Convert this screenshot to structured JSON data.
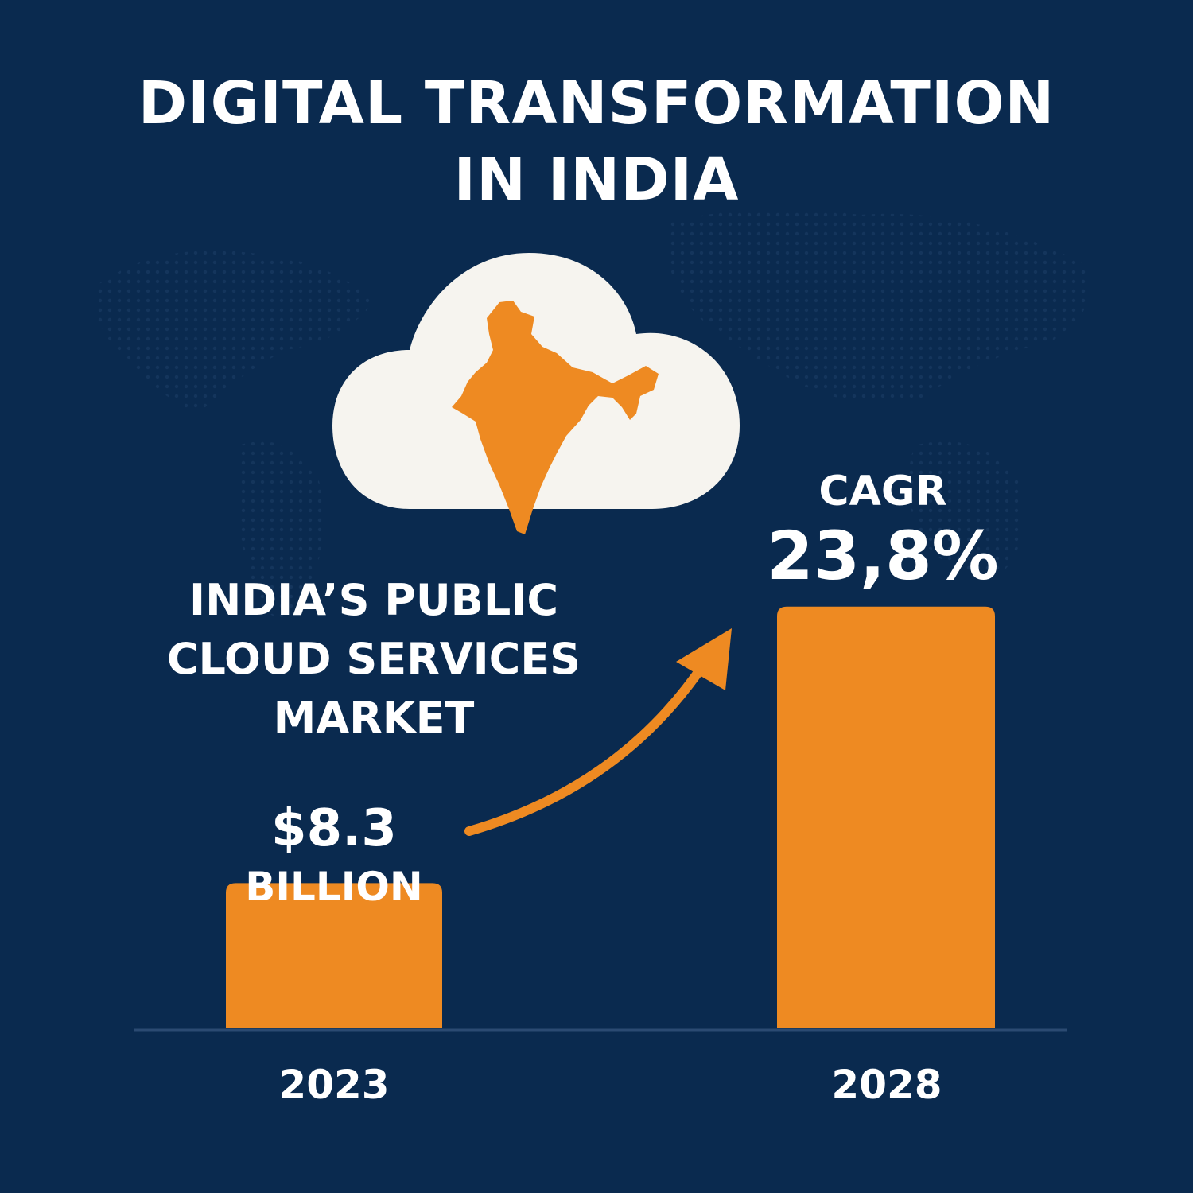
{
  "title_lines": [
    "DIGITAL TRANSFORMATION",
    "IN INDIA"
  ],
  "subtitle_lines": [
    "INDIA’S PUBLIC",
    "CLOUD SERVICES",
    "MARKET"
  ],
  "value_label": {
    "number": "$8.3",
    "unit": "BILLION"
  },
  "cagr": {
    "label": "CAGR",
    "value": "23,8%"
  },
  "colors": {
    "background": "#0a2a4f",
    "bar": "#ee8a22",
    "cloud": "#f6f4ef",
    "map": "#ee8a22",
    "text": "#ffffff",
    "baseline": "#2b4a72"
  },
  "icons": [
    "cloud-icon",
    "india-map-icon",
    "growth-arrow-icon"
  ],
  "chart_data": {
    "type": "bar",
    "categories": [
      "2023",
      "2028"
    ],
    "values": [
      8.3,
      24.1
    ],
    "value_unit": "billion USD",
    "data_labels": [
      "$8.3 BILLION",
      ""
    ],
    "annotation": "CAGR 23,8%",
    "title": "DIGITAL TRANSFORMATION IN INDIA",
    "subtitle": "INDIA’S PUBLIC CLOUD SERVICES MARKET",
    "grid": false,
    "legend": "none"
  }
}
